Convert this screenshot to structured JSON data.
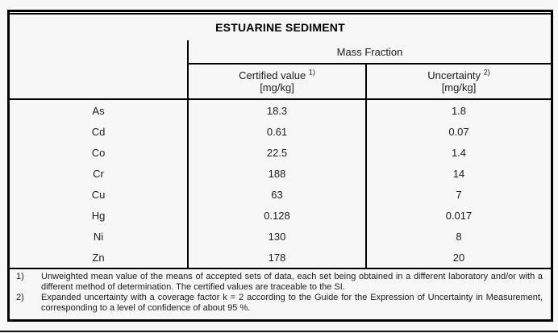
{
  "table": {
    "title": "ESTUARINE SEDIMENT",
    "group_header": "Mass Fraction",
    "columns": [
      {
        "label": "Certified value",
        "footnote_ref": "1)",
        "unit": "[mg/kg]"
      },
      {
        "label": "Uncertainty",
        "footnote_ref": "2)",
        "unit": "[mg/kg]"
      }
    ],
    "rows": [
      {
        "element": "As",
        "certified_value": "18.3",
        "uncertainty": "1.8"
      },
      {
        "element": "Cd",
        "certified_value": "0.61",
        "uncertainty": "0.07"
      },
      {
        "element": "Co",
        "certified_value": "22.5",
        "uncertainty": "1.4"
      },
      {
        "element": "Cr",
        "certified_value": "188",
        "uncertainty": "14"
      },
      {
        "element": "Cu",
        "certified_value": "63",
        "uncertainty": "7"
      },
      {
        "element": "Hg",
        "certified_value": "0.128",
        "uncertainty": "0.017"
      },
      {
        "element": "Ni",
        "certified_value": "130",
        "uncertainty": "8"
      },
      {
        "element": "Zn",
        "certified_value": "178",
        "uncertainty": "20"
      }
    ]
  },
  "footnotes": [
    {
      "marker": "1)",
      "text": "Unweighted mean value of the means of accepted sets of data, each set being obtained in a different laboratory and/or with a different method of determination. The certified values are traceable to the SI."
    },
    {
      "marker": "2)",
      "text": "Expanded uncertainty with a coverage factor k = 2 according to the Guide for the Expression of Uncertainty in Measurement, corresponding to a level of confidence of about 95 %."
    }
  ],
  "colors": {
    "background": "#f7f7f7",
    "border": "#000000",
    "text": "#1a1a1a"
  }
}
